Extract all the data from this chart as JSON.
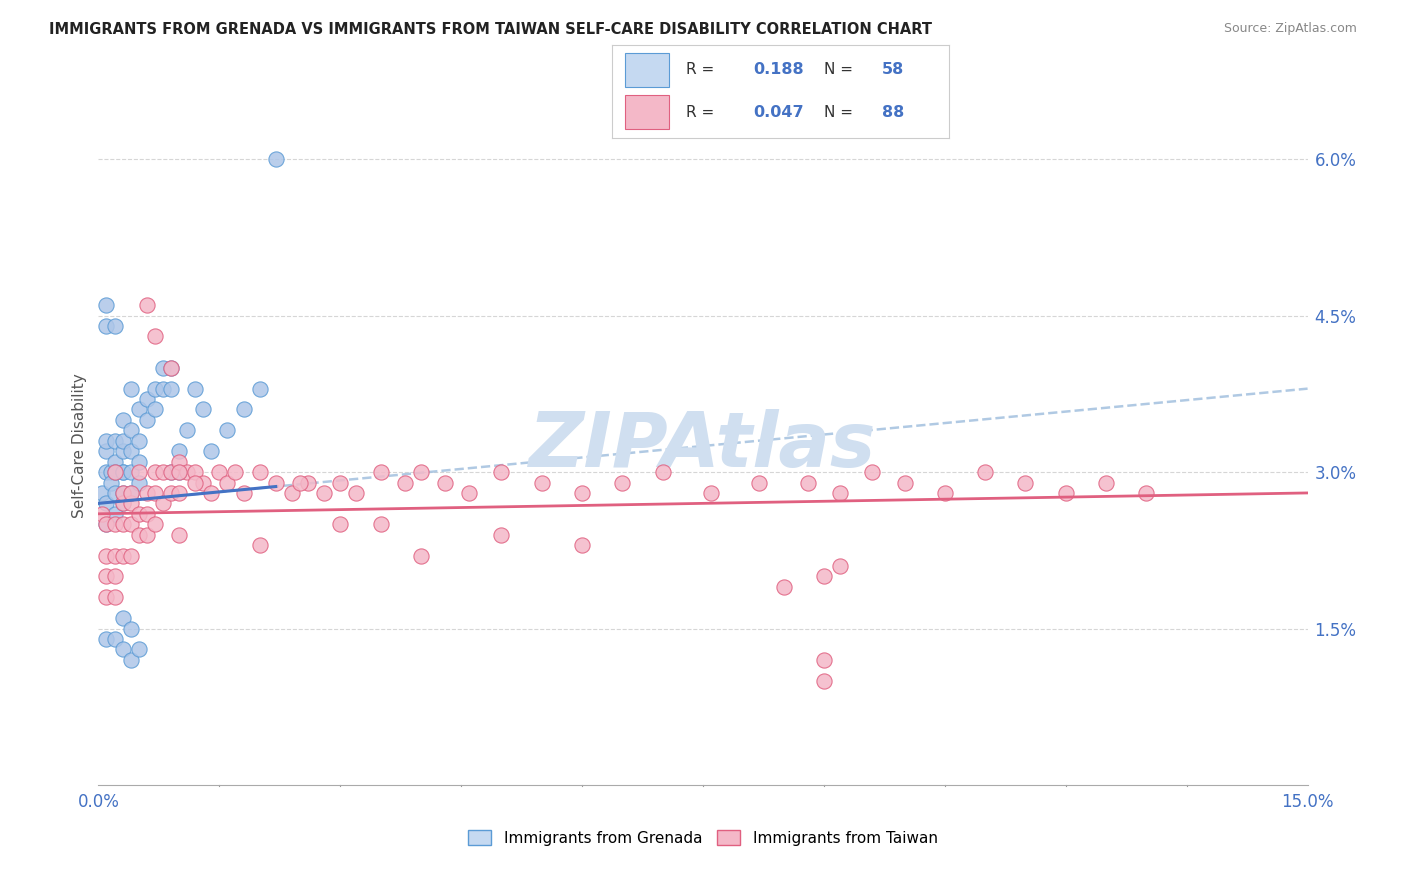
{
  "title": "IMMIGRANTS FROM GRENADA VS IMMIGRANTS FROM TAIWAN SELF-CARE DISABILITY CORRELATION CHART",
  "source": "Source: ZipAtlas.com",
  "ylabel": "Self-Care Disability",
  "grenada_color": "#aec6e8",
  "grenada_edge_color": "#5b9bd5",
  "taiwan_color": "#f4b8c8",
  "taiwan_edge_color": "#e06080",
  "grenada_line_color": "#4472c4",
  "taiwan_line_color": "#e06080",
  "dashed_line_color": "#a8c4e0",
  "background_color": "#ffffff",
  "watermark_color": "#d0dff0",
  "legend_grenada_fill": "#c5d9f1",
  "legend_taiwan_fill": "#f4b8c8",
  "text_dark": "#333333",
  "text_blue": "#4472c4",
  "text_pink": "#e06080",
  "grenada_R": "0.188",
  "grenada_N": "58",
  "taiwan_R": "0.047",
  "taiwan_N": "88",
  "xlim": [
    0,
    0.15
  ],
  "ylim": [
    0,
    0.065
  ],
  "yticks": [
    0.015,
    0.03,
    0.045,
    0.06
  ],
  "ytick_labels": [
    "1.5%",
    "3.0%",
    "4.5%",
    "6.0%"
  ],
  "xtick_labels": [
    "0.0%",
    "15.0%"
  ],
  "xtick_vals": [
    0,
    0.15
  ],
  "grenada_x": [
    0.0005,
    0.001,
    0.001,
    0.001,
    0.001,
    0.001,
    0.0015,
    0.0015,
    0.002,
    0.002,
    0.002,
    0.002,
    0.002,
    0.003,
    0.003,
    0.003,
    0.003,
    0.003,
    0.003,
    0.003,
    0.004,
    0.004,
    0.004,
    0.004,
    0.004,
    0.005,
    0.005,
    0.005,
    0.005,
    0.006,
    0.006,
    0.007,
    0.007,
    0.008,
    0.008,
    0.009,
    0.009,
    0.009,
    0.01,
    0.01,
    0.011,
    0.012,
    0.013,
    0.014,
    0.016,
    0.018,
    0.02,
    0.001,
    0.002,
    0.003,
    0.003,
    0.004,
    0.004,
    0.005,
    0.001,
    0.001,
    0.002,
    0.022
  ],
  "grenada_y": [
    0.028,
    0.03,
    0.027,
    0.032,
    0.025,
    0.033,
    0.03,
    0.029,
    0.031,
    0.028,
    0.033,
    0.03,
    0.026,
    0.035,
    0.032,
    0.03,
    0.028,
    0.033,
    0.03,
    0.027,
    0.034,
    0.032,
    0.03,
    0.028,
    0.038,
    0.036,
    0.033,
    0.031,
    0.029,
    0.037,
    0.035,
    0.038,
    0.036,
    0.04,
    0.038,
    0.04,
    0.038,
    0.03,
    0.032,
    0.03,
    0.034,
    0.038,
    0.036,
    0.032,
    0.034,
    0.036,
    0.038,
    0.014,
    0.014,
    0.016,
    0.013,
    0.015,
    0.012,
    0.013,
    0.046,
    0.044,
    0.044,
    0.06
  ],
  "taiwan_x": [
    0.0005,
    0.001,
    0.001,
    0.001,
    0.001,
    0.002,
    0.002,
    0.002,
    0.002,
    0.002,
    0.003,
    0.003,
    0.003,
    0.003,
    0.004,
    0.004,
    0.004,
    0.004,
    0.005,
    0.005,
    0.005,
    0.006,
    0.006,
    0.006,
    0.007,
    0.007,
    0.007,
    0.008,
    0.008,
    0.009,
    0.009,
    0.01,
    0.01,
    0.011,
    0.012,
    0.013,
    0.014,
    0.015,
    0.016,
    0.017,
    0.018,
    0.02,
    0.022,
    0.024,
    0.026,
    0.028,
    0.03,
    0.032,
    0.035,
    0.038,
    0.04,
    0.043,
    0.046,
    0.05,
    0.055,
    0.06,
    0.065,
    0.07,
    0.076,
    0.082,
    0.088,
    0.092,
    0.096,
    0.1,
    0.105,
    0.11,
    0.115,
    0.12,
    0.125,
    0.13,
    0.006,
    0.007,
    0.009,
    0.01,
    0.012,
    0.025,
    0.03,
    0.04,
    0.085,
    0.09,
    0.092,
    0.01,
    0.02,
    0.035,
    0.05,
    0.06,
    0.09,
    0.09
  ],
  "taiwan_y": [
    0.026,
    0.025,
    0.022,
    0.018,
    0.02,
    0.025,
    0.022,
    0.02,
    0.018,
    0.03,
    0.027,
    0.025,
    0.022,
    0.028,
    0.027,
    0.025,
    0.022,
    0.028,
    0.026,
    0.024,
    0.03,
    0.028,
    0.026,
    0.024,
    0.03,
    0.028,
    0.025,
    0.03,
    0.027,
    0.03,
    0.028,
    0.031,
    0.028,
    0.03,
    0.03,
    0.029,
    0.028,
    0.03,
    0.029,
    0.03,
    0.028,
    0.03,
    0.029,
    0.028,
    0.029,
    0.028,
    0.029,
    0.028,
    0.03,
    0.029,
    0.03,
    0.029,
    0.028,
    0.03,
    0.029,
    0.028,
    0.029,
    0.03,
    0.028,
    0.029,
    0.029,
    0.028,
    0.03,
    0.029,
    0.028,
    0.03,
    0.029,
    0.028,
    0.029,
    0.028,
    0.046,
    0.043,
    0.04,
    0.03,
    0.029,
    0.029,
    0.025,
    0.022,
    0.019,
    0.02,
    0.021,
    0.024,
    0.023,
    0.025,
    0.024,
    0.023,
    0.01,
    0.012
  ]
}
